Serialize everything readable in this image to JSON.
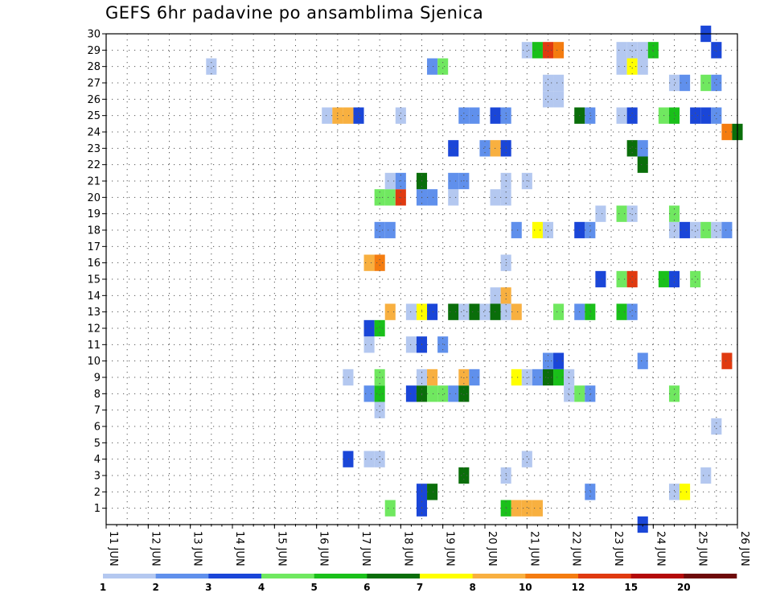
{
  "chart_data": {
    "type": "heatmap",
    "title": "GEFS 6hr padavine po ansamblima Sjenica",
    "x_ticks": [
      "11 JUN",
      "12 JUN",
      "13 JUN",
      "14 JUN",
      "15 JUN",
      "16 JUN",
      "17 JUN",
      "18 JUN",
      "19 JUN",
      "20 JUN",
      "21 JUN",
      "22 JUN",
      "23 JUN",
      "24 JUN",
      "25 JUN",
      "26 JUN"
    ],
    "xlim": [
      "2024-06-11T00:00",
      "2024-06-26T00:00"
    ],
    "x_step_hours": 6,
    "y_ticks": [
      1,
      2,
      3,
      4,
      5,
      6,
      7,
      8,
      9,
      10,
      11,
      12,
      13,
      14,
      15,
      16,
      17,
      18,
      19,
      20,
      21,
      22,
      23,
      24,
      25,
      26,
      27,
      28,
      29,
      30
    ],
    "ylim": [
      0,
      30
    ],
    "grid": true,
    "legend": {
      "position": "bottom",
      "labels": [
        "1",
        "2",
        "3",
        "4",
        "5",
        "6",
        "7",
        "8",
        "10",
        "12",
        "15",
        "20"
      ],
      "colors": [
        "#b4c8f0",
        "#6090ec",
        "#1a46d8",
        "#70e860",
        "#1ac01a",
        "#0a6e0a",
        "#ffff00",
        "#f8b040",
        "#f47c10",
        "#e03a10",
        "#b40a0a",
        "#6e0a0a"
      ]
    },
    "cells": [
      [
        "2024-06-17T18:00",
        1,
        4
      ],
      [
        "2024-06-18T12:00",
        1,
        3
      ],
      [
        "2024-06-20T12:00",
        1,
        5
      ],
      [
        "2024-06-20T18:00",
        1,
        9
      ],
      [
        "2024-06-21T00:00",
        1,
        9
      ],
      [
        "2024-06-21T06:00",
        1,
        8
      ],
      [
        "2024-06-18T12:00",
        2,
        3
      ],
      [
        "2024-06-18T18:00",
        2,
        6
      ],
      [
        "2024-06-22T12:00",
        2,
        2
      ],
      [
        "2024-06-24T12:00",
        2,
        1
      ],
      [
        "2024-06-24T18:00",
        2,
        7
      ],
      [
        "2024-06-19T12:00",
        3,
        6
      ],
      [
        "2024-06-20T12:00",
        3,
        1
      ],
      [
        "2024-06-25T06:00",
        3,
        1
      ],
      [
        "2024-06-16T18:00",
        4,
        3
      ],
      [
        "2024-06-17T06:00",
        4,
        1
      ],
      [
        "2024-06-17T12:00",
        4,
        1
      ],
      [
        "2024-06-21T00:00",
        4,
        1
      ],
      [
        "2024-06-25T12:00",
        6,
        1
      ],
      [
        "2024-06-17T12:00",
        7,
        1
      ],
      [
        "2024-06-17T06:00",
        8,
        2
      ],
      [
        "2024-06-17T12:00",
        8,
        5
      ],
      [
        "2024-06-18T06:00",
        8,
        3
      ],
      [
        "2024-06-18T12:00",
        8,
        6
      ],
      [
        "2024-06-18T18:00",
        8,
        4
      ],
      [
        "2024-06-19T00:00",
        8,
        4
      ],
      [
        "2024-06-19T06:00",
        8,
        2
      ],
      [
        "2024-06-19T12:00",
        8,
        6
      ],
      [
        "2024-06-22T00:00",
        8,
        1
      ],
      [
        "2024-06-22T06:00",
        8,
        4
      ],
      [
        "2024-06-22T12:00",
        8,
        2
      ],
      [
        "2024-06-24T12:00",
        8,
        4
      ],
      [
        "2024-06-16T18:00",
        9,
        1
      ],
      [
        "2024-06-17T12:00",
        9,
        4
      ],
      [
        "2024-06-18T12:00",
        9,
        1
      ],
      [
        "2024-06-18T18:00",
        9,
        9
      ],
      [
        "2024-06-19T12:00",
        9,
        8
      ],
      [
        "2024-06-19T18:00",
        9,
        2
      ],
      [
        "2024-06-20T18:00",
        9,
        7
      ],
      [
        "2024-06-21T00:00",
        9,
        1
      ],
      [
        "2024-06-21T06:00",
        9,
        2
      ],
      [
        "2024-06-21T12:00",
        9,
        6
      ],
      [
        "2024-06-21T18:00",
        9,
        5
      ],
      [
        "2024-06-22T00:00",
        9,
        1
      ],
      [
        "2024-06-21T12:00",
        10,
        2
      ],
      [
        "2024-06-21T18:00",
        10,
        3
      ],
      [
        "2024-06-23T18:00",
        10,
        2
      ],
      [
        "2024-06-25T18:00",
        10,
        12
      ],
      [
        "2024-06-17T06:00",
        11,
        1
      ],
      [
        "2024-06-18T06:00",
        11,
        1
      ],
      [
        "2024-06-18T12:00",
        11,
        3
      ],
      [
        "2024-06-19T00:00",
        11,
        2
      ],
      [
        "2024-06-17T06:00",
        12,
        3
      ],
      [
        "2024-06-17T12:00",
        12,
        5
      ],
      [
        "2024-06-17T18:00",
        13,
        9
      ],
      [
        "2024-06-18T12:00",
        13,
        7
      ],
      [
        "2024-06-18T06:00",
        13,
        1
      ],
      [
        "2024-06-18T18:00",
        13,
        3
      ],
      [
        "2024-06-19T06:00",
        13,
        6
      ],
      [
        "2024-06-19T12:00",
        13,
        1
      ],
      [
        "2024-06-19T18:00",
        13,
        6
      ],
      [
        "2024-06-20T00:00",
        13,
        1
      ],
      [
        "2024-06-20T06:00",
        13,
        6
      ],
      [
        "2024-06-20T12:00",
        13,
        1
      ],
      [
        "2024-06-20T18:00",
        13,
        9
      ],
      [
        "2024-06-21T18:00",
        13,
        4
      ],
      [
        "2024-06-22T06:00",
        13,
        2
      ],
      [
        "2024-06-22T12:00",
        13,
        5
      ],
      [
        "2024-06-23T06:00",
        13,
        5
      ],
      [
        "2024-06-23T12:00",
        13,
        2
      ],
      [
        "2024-06-20T06:00",
        14,
        1
      ],
      [
        "2024-06-20T12:00",
        14,
        8
      ],
      [
        "2024-06-22T18:00",
        15,
        3
      ],
      [
        "2024-06-23T06:00",
        15,
        4
      ],
      [
        "2024-06-23T12:00",
        15,
        12
      ],
      [
        "2024-06-24T06:00",
        15,
        5
      ],
      [
        "2024-06-24T12:00",
        15,
        3
      ],
      [
        "2024-06-25T00:00",
        15,
        4
      ],
      [
        "2024-06-17T06:00",
        16,
        8
      ],
      [
        "2024-06-17T12:00",
        16,
        10
      ],
      [
        "2024-06-20T12:00",
        16,
        1
      ],
      [
        "2024-06-17T12:00",
        18,
        2
      ],
      [
        "2024-06-17T18:00",
        18,
        2
      ],
      [
        "2024-06-20T18:00",
        18,
        2
      ],
      [
        "2024-06-21T06:00",
        18,
        7
      ],
      [
        "2024-06-21T12:00",
        18,
        1
      ],
      [
        "2024-06-22T06:00",
        18,
        3
      ],
      [
        "2024-06-22T12:00",
        18,
        2
      ],
      [
        "2024-06-24T12:00",
        18,
        1
      ],
      [
        "2024-06-24T18:00",
        18,
        3
      ],
      [
        "2024-06-25T00:00",
        18,
        1
      ],
      [
        "2024-06-25T06:00",
        18,
        4
      ],
      [
        "2024-06-25T12:00",
        18,
        1
      ],
      [
        "2024-06-25T18:00",
        18,
        2
      ],
      [
        "2024-06-22T18:00",
        19,
        1
      ],
      [
        "2024-06-23T06:00",
        19,
        4
      ],
      [
        "2024-06-23T12:00",
        19,
        1
      ],
      [
        "2024-06-24T12:00",
        19,
        4
      ],
      [
        "2024-06-17T12:00",
        20,
        4
      ],
      [
        "2024-06-17T18:00",
        20,
        4
      ],
      [
        "2024-06-18T00:00",
        20,
        12
      ],
      [
        "2024-06-18T12:00",
        20,
        2
      ],
      [
        "2024-06-18T18:00",
        20,
        2
      ],
      [
        "2024-06-19T06:00",
        20,
        1
      ],
      [
        "2024-06-20T06:00",
        20,
        1
      ],
      [
        "2024-06-20T12:00",
        20,
        1
      ],
      [
        "2024-06-17T18:00",
        21,
        1
      ],
      [
        "2024-06-18T00:00",
        21,
        2
      ],
      [
        "2024-06-18T12:00",
        21,
        6
      ],
      [
        "2024-06-19T06:00",
        21,
        2
      ],
      [
        "2024-06-19T12:00",
        21,
        2
      ],
      [
        "2024-06-20T12:00",
        21,
        1
      ],
      [
        "2024-06-21T00:00",
        21,
        1
      ],
      [
        "2024-06-23T18:00",
        22,
        6
      ],
      [
        "2024-06-19T06:00",
        23,
        3
      ],
      [
        "2024-06-20T00:00",
        23,
        2
      ],
      [
        "2024-06-20T06:00",
        23,
        9
      ],
      [
        "2024-06-20T12:00",
        23,
        3
      ],
      [
        "2024-06-23T12:00",
        23,
        6
      ],
      [
        "2024-06-23T18:00",
        23,
        2
      ],
      [
        "2024-06-25T18:00",
        24,
        10
      ],
      [
        "2024-06-26T00:00",
        24,
        6
      ],
      [
        "2024-06-16T06:00",
        25,
        1
      ],
      [
        "2024-06-16T12:00",
        25,
        9
      ],
      [
        "2024-06-16T18:00",
        25,
        9
      ],
      [
        "2024-06-17T00:00",
        25,
        3
      ],
      [
        "2024-06-18T00:00",
        25,
        1
      ],
      [
        "2024-06-19T12:00",
        25,
        2
      ],
      [
        "2024-06-19T18:00",
        25,
        2
      ],
      [
        "2024-06-20T06:00",
        25,
        3
      ],
      [
        "2024-06-20T12:00",
        25,
        2
      ],
      [
        "2024-06-22T06:00",
        25,
        6
      ],
      [
        "2024-06-22T12:00",
        25,
        2
      ],
      [
        "2024-06-23T06:00",
        25,
        1
      ],
      [
        "2024-06-23T12:00",
        25,
        3
      ],
      [
        "2024-06-24T06:00",
        25,
        4
      ],
      [
        "2024-06-24T12:00",
        25,
        5
      ],
      [
        "2024-06-25T00:00",
        25,
        3
      ],
      [
        "2024-06-25T06:00",
        25,
        3
      ],
      [
        "2024-06-25T12:00",
        25,
        2
      ],
      [
        "2024-06-21T12:00",
        26,
        1
      ],
      [
        "2024-06-21T18:00",
        26,
        1
      ],
      [
        "2024-06-21T12:00",
        27,
        1
      ],
      [
        "2024-06-21T18:00",
        27,
        1
      ],
      [
        "2024-06-24T12:00",
        27,
        1
      ],
      [
        "2024-06-24T18:00",
        27,
        2
      ],
      [
        "2024-06-25T06:00",
        27,
        4
      ],
      [
        "2024-06-25T12:00",
        27,
        2
      ],
      [
        "2024-06-13T12:00",
        28,
        1
      ],
      [
        "2024-06-18T18:00",
        28,
        2
      ],
      [
        "2024-06-19T00:00",
        28,
        4
      ],
      [
        "2024-06-23T06:00",
        28,
        1
      ],
      [
        "2024-06-23T12:00",
        28,
        7
      ],
      [
        "2024-06-23T18:00",
        28,
        1
      ],
      [
        "2024-06-21T00:00",
        29,
        1
      ],
      [
        "2024-06-21T06:00",
        29,
        5
      ],
      [
        "2024-06-21T12:00",
        29,
        12
      ],
      [
        "2024-06-21T18:00",
        29,
        10
      ],
      [
        "2024-06-23T06:00",
        29,
        1
      ],
      [
        "2024-06-23T12:00",
        29,
        1
      ],
      [
        "2024-06-23T18:00",
        29,
        1
      ],
      [
        "2024-06-24T00:00",
        29,
        5
      ],
      [
        "2024-06-25T12:00",
        29,
        3
      ],
      [
        "2024-06-25T06:00",
        30,
        3
      ],
      [
        "2024-06-23T18:00",
        0,
        3
      ]
    ]
  }
}
